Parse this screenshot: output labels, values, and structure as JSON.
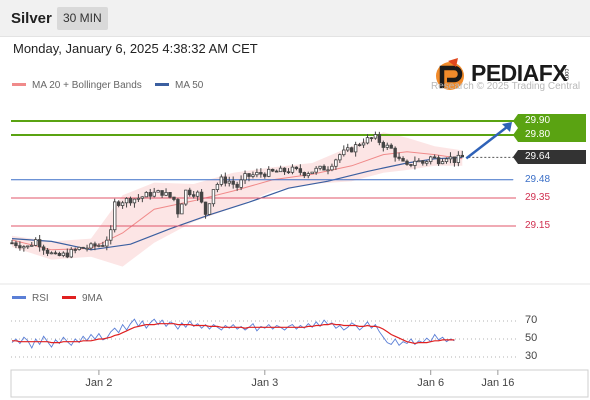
{
  "header": {
    "symbol": "Silver",
    "timeframe": "30 MIN"
  },
  "timestamp": "Monday, January 6, 2025 4:38:32 AM CET",
  "logo": {
    "text": "PEDIAFX",
    "suffix": ".com"
  },
  "copyright": "Research © 2025 Trading Central",
  "legend": {
    "ma20": {
      "label": "MA 20 + Bollinger Bands",
      "color": "#f08a8a"
    },
    "ma50": {
      "label": "MA 50",
      "color": "#3b5fa0"
    },
    "rsi": {
      "label": "RSI",
      "color": "#5b7fd6"
    },
    "rsi_ma": {
      "label": "9MA",
      "color": "#e02020"
    }
  },
  "colors": {
    "up": "#444444",
    "down": "#444444",
    "target": "#5aa312",
    "pivot": "#3b6fc7",
    "support": "#e0566a",
    "current": "#333333"
  },
  "chart_data": [
    {
      "type": "candlestick",
      "title": "Silver",
      "ylim": [
        28.85,
        30.05
      ],
      "x_ticks": [
        {
          "label": "Jan 2",
          "index": 22
        },
        {
          "label": "Jan 3",
          "index": 64
        },
        {
          "label": "Jan 6",
          "index": 106
        },
        {
          "label": "Jan 16",
          "index": 123
        }
      ],
      "levels": [
        {
          "value": 29.9,
          "label": "29.90",
          "kind": "target"
        },
        {
          "value": 29.8,
          "label": "29.80",
          "kind": "target"
        },
        {
          "value": 29.64,
          "label": "29.64",
          "kind": "current"
        },
        {
          "value": 29.48,
          "label": "29.48",
          "kind": "pivot"
        },
        {
          "value": 29.35,
          "label": "29.35",
          "kind": "support"
        },
        {
          "value": 29.15,
          "label": "29.15",
          "kind": "support"
        }
      ],
      "price_path": [
        [
          0,
          29.03
        ],
        [
          4,
          29.0
        ],
        [
          6,
          29.05
        ],
        [
          9,
          28.97
        ],
        [
          11,
          28.93
        ],
        [
          14,
          28.95
        ],
        [
          17,
          28.99
        ],
        [
          20,
          29.0
        ],
        [
          23,
          29.02
        ],
        [
          25,
          29.1
        ],
        [
          26,
          29.31
        ],
        [
          28,
          29.33
        ],
        [
          32,
          29.35
        ],
        [
          35,
          29.38
        ],
        [
          38,
          29.39
        ],
        [
          41,
          29.34
        ],
        [
          42,
          29.25
        ],
        [
          44,
          29.4
        ],
        [
          47,
          29.38
        ],
        [
          49,
          29.24
        ],
        [
          51,
          29.42
        ],
        [
          53,
          29.48
        ],
        [
          55,
          29.47
        ],
        [
          57,
          29.43
        ],
        [
          59,
          29.5
        ],
        [
          62,
          29.52
        ],
        [
          65,
          29.53
        ],
        [
          68,
          29.54
        ],
        [
          71,
          29.55
        ],
        [
          74,
          29.53
        ],
        [
          77,
          29.55
        ],
        [
          80,
          29.57
        ],
        [
          83,
          29.66
        ],
        [
          86,
          29.7
        ],
        [
          89,
          29.76
        ],
        [
          92,
          29.78
        ],
        [
          94,
          29.73
        ],
        [
          96,
          29.7
        ],
        [
          98,
          29.62
        ],
        [
          100,
          29.57
        ],
        [
          102,
          29.62
        ],
        [
          104,
          29.6
        ],
        [
          106,
          29.64
        ],
        [
          108,
          29.62
        ],
        [
          110,
          29.65
        ],
        [
          112,
          29.62
        ],
        [
          114,
          29.64
        ]
      ],
      "ma20_path": [
        [
          0,
          29.05
        ],
        [
          10,
          28.98
        ],
        [
          20,
          28.99
        ],
        [
          28,
          29.1
        ],
        [
          36,
          29.27
        ],
        [
          46,
          29.33
        ],
        [
          56,
          29.4
        ],
        [
          66,
          29.48
        ],
        [
          76,
          29.52
        ],
        [
          86,
          29.58
        ],
        [
          94,
          29.66
        ],
        [
          100,
          29.68
        ],
        [
          107,
          29.66
        ],
        [
          114,
          29.63
        ]
      ],
      "bb_upper_path": [
        [
          0,
          29.08
        ],
        [
          10,
          29.04
        ],
        [
          20,
          29.06
        ],
        [
          28,
          29.37
        ],
        [
          36,
          29.46
        ],
        [
          46,
          29.45
        ],
        [
          56,
          29.53
        ],
        [
          66,
          29.57
        ],
        [
          76,
          29.6
        ],
        [
          86,
          29.72
        ],
        [
          94,
          29.82
        ],
        [
          100,
          29.78
        ],
        [
          107,
          29.72
        ],
        [
          114,
          29.69
        ]
      ],
      "bb_lower_path": [
        [
          0,
          29.0
        ],
        [
          10,
          28.91
        ],
        [
          20,
          28.93
        ],
        [
          28,
          28.86
        ],
        [
          36,
          29.03
        ],
        [
          46,
          29.18
        ],
        [
          56,
          29.28
        ],
        [
          66,
          29.4
        ],
        [
          76,
          29.45
        ],
        [
          86,
          29.47
        ],
        [
          94,
          29.53
        ],
        [
          100,
          29.55
        ],
        [
          107,
          29.58
        ],
        [
          114,
          29.58
        ]
      ],
      "ma50_path": [
        [
          0,
          29.06
        ],
        [
          10,
          29.04
        ],
        [
          20,
          28.98
        ],
        [
          30,
          29.02
        ],
        [
          40,
          29.13
        ],
        [
          50,
          29.23
        ],
        [
          60,
          29.32
        ],
        [
          70,
          29.42
        ],
        [
          80,
          29.47
        ],
        [
          90,
          29.54
        ],
        [
          100,
          29.6
        ],
        [
          107,
          29.63
        ],
        [
          114,
          29.64
        ]
      ]
    },
    {
      "type": "line",
      "title": "RSI",
      "ylim": [
        20,
        80
      ],
      "y_ticks": [
        70,
        50,
        30
      ],
      "series": [
        {
          "name": "RSI",
          "values": [
            46,
            50,
            45,
            52,
            48,
            40,
            50,
            44,
            53,
            47,
            41,
            49,
            45,
            52,
            47,
            43,
            50,
            46,
            53,
            48,
            55,
            50,
            56,
            49,
            51,
            58,
            62,
            57,
            66,
            60,
            67,
            72,
            64,
            70,
            62,
            68,
            72,
            66,
            71,
            64,
            69,
            67,
            61,
            68,
            63,
            70,
            64,
            67,
            62,
            66,
            61,
            66,
            63,
            60,
            65,
            62,
            66,
            61,
            64,
            60,
            63,
            67,
            59,
            64,
            62,
            66,
            61,
            65,
            63,
            60,
            64,
            66,
            61,
            65,
            62,
            67,
            63,
            69,
            64,
            71,
            66,
            68,
            62,
            65,
            60,
            63,
            68,
            65,
            60,
            64,
            69,
            62,
            66,
            58,
            52,
            46,
            44,
            50,
            43,
            47,
            45,
            50,
            44,
            48,
            46,
            51,
            47,
            55,
            49,
            52,
            47,
            50,
            48
          ]
        },
        {
          "name": "9MA",
          "values": [
            48,
            48,
            47,
            47,
            47,
            47,
            47,
            47,
            47,
            47,
            46,
            46,
            46,
            47,
            47,
            47,
            47,
            47,
            48,
            48,
            48,
            49,
            50,
            50,
            51,
            52,
            54,
            55,
            57,
            59,
            61,
            63,
            64,
            65,
            66,
            66,
            66,
            67,
            67,
            67,
            67,
            67,
            66,
            66,
            66,
            66,
            65,
            65,
            65,
            65,
            64,
            64,
            64,
            63,
            63,
            63,
            63,
            63,
            63,
            62,
            63,
            63,
            63,
            63,
            63,
            63,
            63,
            63,
            63,
            63,
            63,
            63,
            63,
            63,
            63,
            64,
            64,
            65,
            65,
            66,
            66,
            67,
            66,
            66,
            65,
            65,
            65,
            65,
            64,
            64,
            65,
            64,
            64,
            63,
            61,
            58,
            55,
            53,
            51,
            49,
            47,
            46,
            45,
            46,
            46,
            46,
            47,
            48,
            48,
            49,
            49,
            49,
            49
          ]
        }
      ]
    }
  ]
}
